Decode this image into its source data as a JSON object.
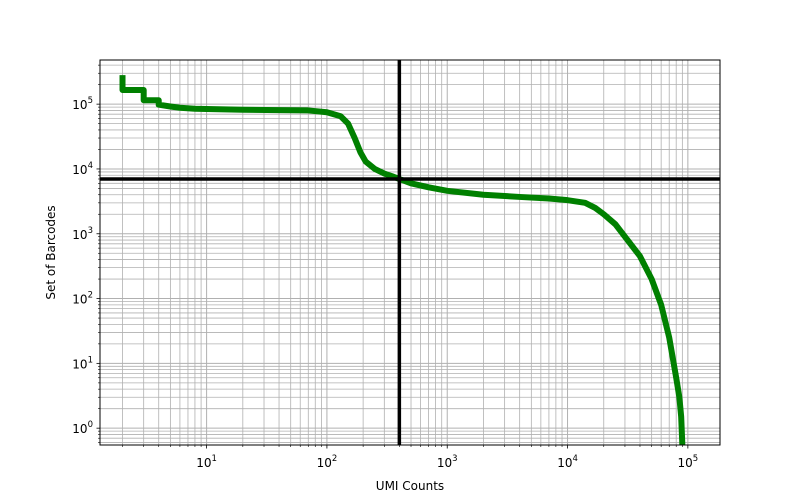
{
  "chart_data": {
    "type": "line",
    "title": "",
    "xlabel": "UMI Counts",
    "ylabel": "Set of Barcodes",
    "xscale": "log",
    "yscale": "log",
    "xlim": [
      1.3,
      185000
    ],
    "ylim": [
      0.55,
      480000
    ],
    "grid": "major and minor",
    "x_tick_labels": [
      {
        "base": "10",
        "exp": "1",
        "value": 10
      },
      {
        "base": "10",
        "exp": "2",
        "value": 100
      },
      {
        "base": "10",
        "exp": "3",
        "value": 1000
      },
      {
        "base": "10",
        "exp": "4",
        "value": 10000
      },
      {
        "base": "10",
        "exp": "5",
        "value": 100000
      }
    ],
    "y_tick_labels": [
      {
        "base": "10",
        "exp": "0",
        "value": 1
      },
      {
        "base": "10",
        "exp": "1",
        "value": 10
      },
      {
        "base": "10",
        "exp": "2",
        "value": 100
      },
      {
        "base": "10",
        "exp": "3",
        "value": 1000
      },
      {
        "base": "10",
        "exp": "4",
        "value": 10000
      },
      {
        "base": "10",
        "exp": "5",
        "value": 100000
      }
    ],
    "threshold": {
      "x": 400,
      "y": 7000
    },
    "series": [
      {
        "color": "#008000",
        "points": [
          [
            2,
            280000
          ],
          [
            2,
            165000
          ],
          [
            3,
            165000
          ],
          [
            3,
            115000
          ],
          [
            4,
            115000
          ],
          [
            4,
            98000
          ],
          [
            5,
            92000
          ],
          [
            6,
            88000
          ],
          [
            8,
            85000
          ],
          [
            10,
            84000
          ],
          [
            20,
            82000
          ],
          [
            40,
            81000
          ],
          [
            70,
            80000
          ],
          [
            100,
            75000
          ],
          [
            130,
            65000
          ],
          [
            150,
            50000
          ],
          [
            170,
            30000
          ],
          [
            190,
            18000
          ],
          [
            210,
            13000
          ],
          [
            250,
            10000
          ],
          [
            300,
            8500
          ],
          [
            350,
            7700
          ],
          [
            400,
            7000
          ],
          [
            500,
            6000
          ],
          [
            700,
            5200
          ],
          [
            1000,
            4600
          ],
          [
            2000,
            4000
          ],
          [
            4000,
            3700
          ],
          [
            7000,
            3500
          ],
          [
            10000,
            3300
          ],
          [
            14000,
            3000
          ],
          [
            17000,
            2500
          ],
          [
            20000,
            2000
          ],
          [
            25000,
            1400
          ],
          [
            30000,
            900
          ],
          [
            40000,
            450
          ],
          [
            50000,
            200
          ],
          [
            60000,
            80
          ],
          [
            70000,
            25
          ],
          [
            75000,
            12
          ],
          [
            80000,
            6
          ],
          [
            85000,
            3
          ],
          [
            88000,
            1.5
          ],
          [
            90000,
            0.55
          ]
        ]
      }
    ],
    "colors": {
      "line": "#008000",
      "threshold": "#000000",
      "grid": "#b0b0b0"
    }
  }
}
